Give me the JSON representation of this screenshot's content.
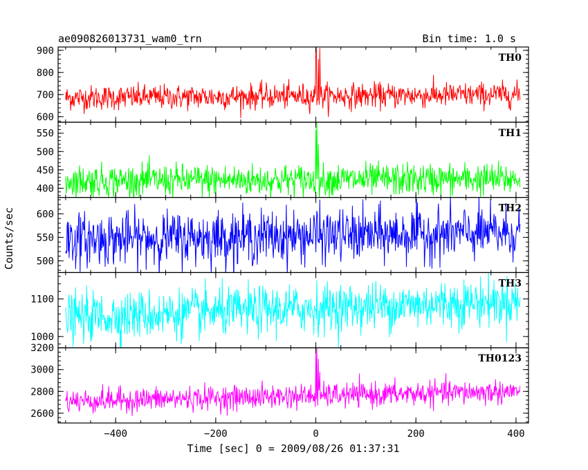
{
  "header": {
    "title": "ae090826013731_wam0_trn",
    "bin_time": "Bin time: 1.0 s"
  },
  "axes": {
    "xlabel": "Time [sec] 0 = 2009/08/26 01:37:31",
    "ylabel": "Counts/sec"
  },
  "chart_data": {
    "type": "line",
    "title": "ae090826013731_wam0_trn",
    "subtitle": "Bin time: 1.0 s",
    "xlabel": "Time [sec] 0 = 2009/08/26 01:37:31",
    "ylabel": "Counts/sec",
    "xlim": [
      -515,
      425
    ],
    "xticks": [
      -400,
      -200,
      0,
      200,
      400
    ],
    "x_range": [
      -500,
      408
    ],
    "x_step": 1,
    "grid": false,
    "panels": [
      {
        "name": "TH0",
        "color": "#ff0000",
        "ylim": [
          575,
          915
        ],
        "yticks": [
          600,
          700,
          800,
          900
        ],
        "baseline_start": 685,
        "baseline_end": 700,
        "noise_amplitude": 28,
        "burst": [
          {
            "t": 0,
            "value": 920
          },
          {
            "t": 1,
            "value": 905
          },
          {
            "t": 5,
            "value": 860
          },
          {
            "t": 8,
            "value": 910
          }
        ]
      },
      {
        "name": "TH1",
        "color": "#00ff00",
        "ylim": [
          375,
          580
        ],
        "yticks": [
          400,
          450,
          500,
          550
        ],
        "baseline_start": 420,
        "baseline_end": 425,
        "noise_amplitude": 22,
        "burst": [
          {
            "t": 0,
            "value": 560
          },
          {
            "t": 2,
            "value": 582
          },
          {
            "t": 5,
            "value": 520
          }
        ]
      },
      {
        "name": "TH2",
        "color": "#0000ff",
        "ylim": [
          475,
          635
        ],
        "yticks": [
          500,
          550,
          600
        ],
        "baseline_start": 545,
        "baseline_end": 560,
        "noise_amplitude": 28,
        "burst": [
          {
            "t": 3,
            "value": 600
          }
        ]
      },
      {
        "name": "TH3",
        "color": "#00ffff",
        "ylim": [
          970,
          1170
        ],
        "yticks": [
          1000,
          1100
        ],
        "baseline_start": 1050,
        "baseline_end": 1095,
        "noise_amplitude": 32,
        "burst": [
          {
            "t": 2,
            "value": 1150
          }
        ]
      },
      {
        "name": "TH0123",
        "color": "#ff00ff",
        "ylim": [
          2510,
          3200
        ],
        "yticks": [
          2600,
          2800,
          3000,
          3200
        ],
        "baseline_start": 2710,
        "baseline_end": 2800,
        "noise_amplitude": 55,
        "burst": [
          {
            "t": 0,
            "value": 3150
          },
          {
            "t": 2,
            "value": 3200
          },
          {
            "t": 5,
            "value": 3100
          },
          {
            "t": 8,
            "value": 2980
          }
        ]
      }
    ]
  }
}
